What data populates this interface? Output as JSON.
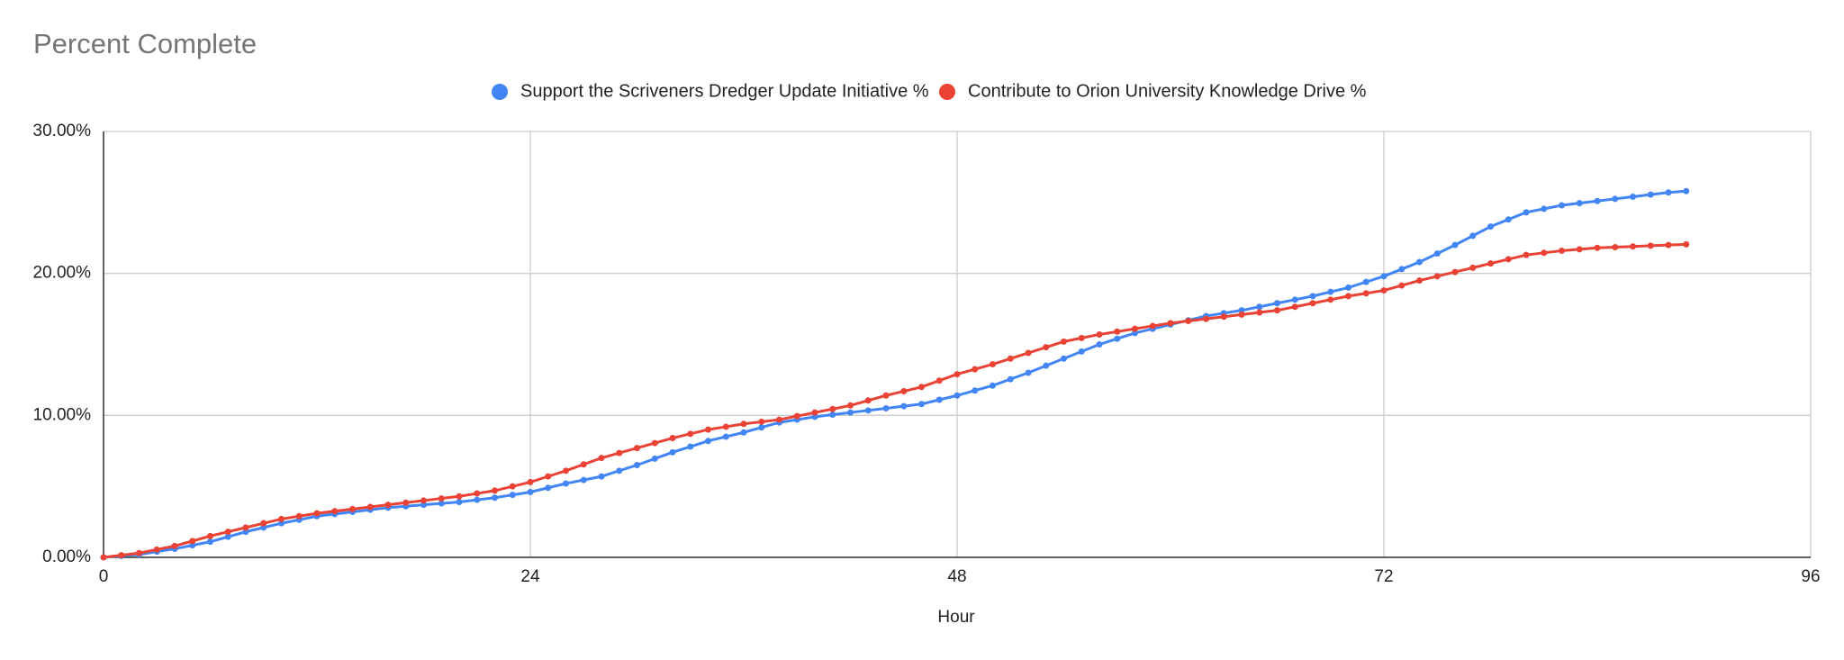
{
  "chart_data": {
    "type": "line",
    "title": "Percent Complete",
    "x_label": "Hour",
    "x": [
      0,
      1,
      2,
      3,
      4,
      5,
      6,
      7,
      8,
      9,
      10,
      11,
      12,
      13,
      14,
      15,
      16,
      17,
      18,
      19,
      20,
      21,
      22,
      23,
      24,
      25,
      26,
      27,
      28,
      29,
      30,
      31,
      32,
      33,
      34,
      35,
      36,
      37,
      38,
      39,
      40,
      41,
      42,
      43,
      44,
      45,
      46,
      47,
      48,
      49,
      50,
      51,
      52,
      53,
      54,
      55,
      56,
      57,
      58,
      59,
      60,
      61,
      62,
      63,
      64,
      65,
      66,
      67,
      68,
      69,
      70,
      71,
      72,
      73,
      74,
      75,
      76,
      77,
      78,
      79,
      80,
      81,
      82,
      83,
      84,
      85,
      86,
      87,
      88,
      89
    ],
    "series": [
      {
        "name": "Support the Scriveners Dredger Update Initiative %",
        "color": "#4285f4",
        "values": [
          0,
          0.1,
          0.2,
          0.4,
          0.6,
          0.85,
          1.1,
          1.45,
          1.8,
          2.1,
          2.4,
          2.65,
          2.9,
          3.05,
          3.2,
          3.35,
          3.5,
          3.6,
          3.7,
          3.8,
          3.9,
          4.05,
          4.2,
          4.4,
          4.6,
          4.9,
          5.2,
          5.45,
          5.7,
          6.1,
          6.5,
          6.95,
          7.4,
          7.8,
          8.2,
          8.5,
          8.8,
          9.15,
          9.5,
          9.7,
          9.9,
          10.05,
          10.2,
          10.35,
          10.5,
          10.65,
          10.8,
          11.1,
          11.4,
          11.75,
          12.1,
          12.55,
          13.0,
          13.5,
          14.0,
          14.5,
          15.0,
          15.4,
          15.8,
          16.1,
          16.4,
          16.7,
          17.0,
          17.2,
          17.4,
          17.65,
          17.9,
          18.15,
          18.4,
          18.7,
          19.0,
          19.4,
          19.8,
          20.3,
          20.8,
          21.4,
          22.0,
          22.65,
          23.3,
          23.8,
          24.3,
          24.55,
          24.8,
          24.95,
          25.1,
          25.25,
          25.4,
          25.55,
          25.7,
          25.8
        ]
      },
      {
        "name": "Contribute to Orion University Knowledge Drive %",
        "color": "#ea4335",
        "values": [
          0,
          0.15,
          0.3,
          0.55,
          0.8,
          1.15,
          1.5,
          1.8,
          2.1,
          2.4,
          2.7,
          2.9,
          3.1,
          3.25,
          3.4,
          3.55,
          3.7,
          3.85,
          4.0,
          4.15,
          4.3,
          4.5,
          4.7,
          5.0,
          5.3,
          5.7,
          6.1,
          6.55,
          7.0,
          7.35,
          7.7,
          8.05,
          8.4,
          8.7,
          9.0,
          9.2,
          9.4,
          9.55,
          9.7,
          9.95,
          10.2,
          10.45,
          10.7,
          11.05,
          11.4,
          11.7,
          12.0,
          12.45,
          12.9,
          13.25,
          13.6,
          14.0,
          14.4,
          14.8,
          15.2,
          15.45,
          15.7,
          15.9,
          16.1,
          16.3,
          16.5,
          16.65,
          16.8,
          16.95,
          17.1,
          17.25,
          17.4,
          17.65,
          17.9,
          18.15,
          18.4,
          18.6,
          18.8,
          19.15,
          19.5,
          19.8,
          20.1,
          20.4,
          20.7,
          21.0,
          21.3,
          21.45,
          21.6,
          21.7,
          21.8,
          21.85,
          21.9,
          21.95,
          22.0,
          22.05
        ]
      }
    ],
    "xlim": [
      0,
      96
    ],
    "xticks": [
      0,
      24,
      48,
      72,
      96
    ],
    "ylim": [
      0,
      30
    ],
    "yticks": [
      {
        "value": 0,
        "label": "0.00%"
      },
      {
        "value": 10,
        "label": "10.00%"
      },
      {
        "value": 20,
        "label": "20.00%"
      },
      {
        "value": 30,
        "label": "30.00%"
      }
    ],
    "grid": true,
    "legend": "top"
  }
}
